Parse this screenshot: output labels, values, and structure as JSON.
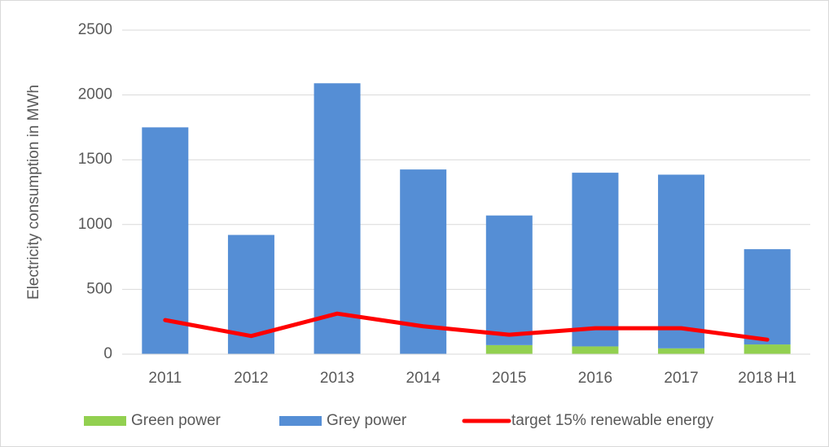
{
  "chart_data": {
    "type": "bar",
    "y_label": "Electricity consumption in MWh",
    "categories": [
      "2011",
      "2012",
      "2013",
      "2014",
      "2015",
      "2016",
      "2017",
      "2018 H1"
    ],
    "series": [
      {
        "name": "Green power",
        "color": "#92d050",
        "values": [
          0,
          0,
          0,
          0,
          70,
          60,
          45,
          75
        ]
      },
      {
        "name": "Grey power",
        "color": "#558ed5",
        "values": [
          1750,
          920,
          2090,
          1425,
          1000,
          1340,
          1340,
          735
        ]
      },
      {
        "name": "target 15% renewable energy",
        "color": "#ff0000",
        "type": "line",
        "values": [
          263,
          140,
          313,
          215,
          150,
          200,
          200,
          112
        ]
      }
    ],
    "ylim": [
      0,
      2500
    ],
    "yticks": [
      0,
      500,
      1000,
      1500,
      2000,
      2500
    ],
    "grid": true,
    "legend": "bottom"
  }
}
